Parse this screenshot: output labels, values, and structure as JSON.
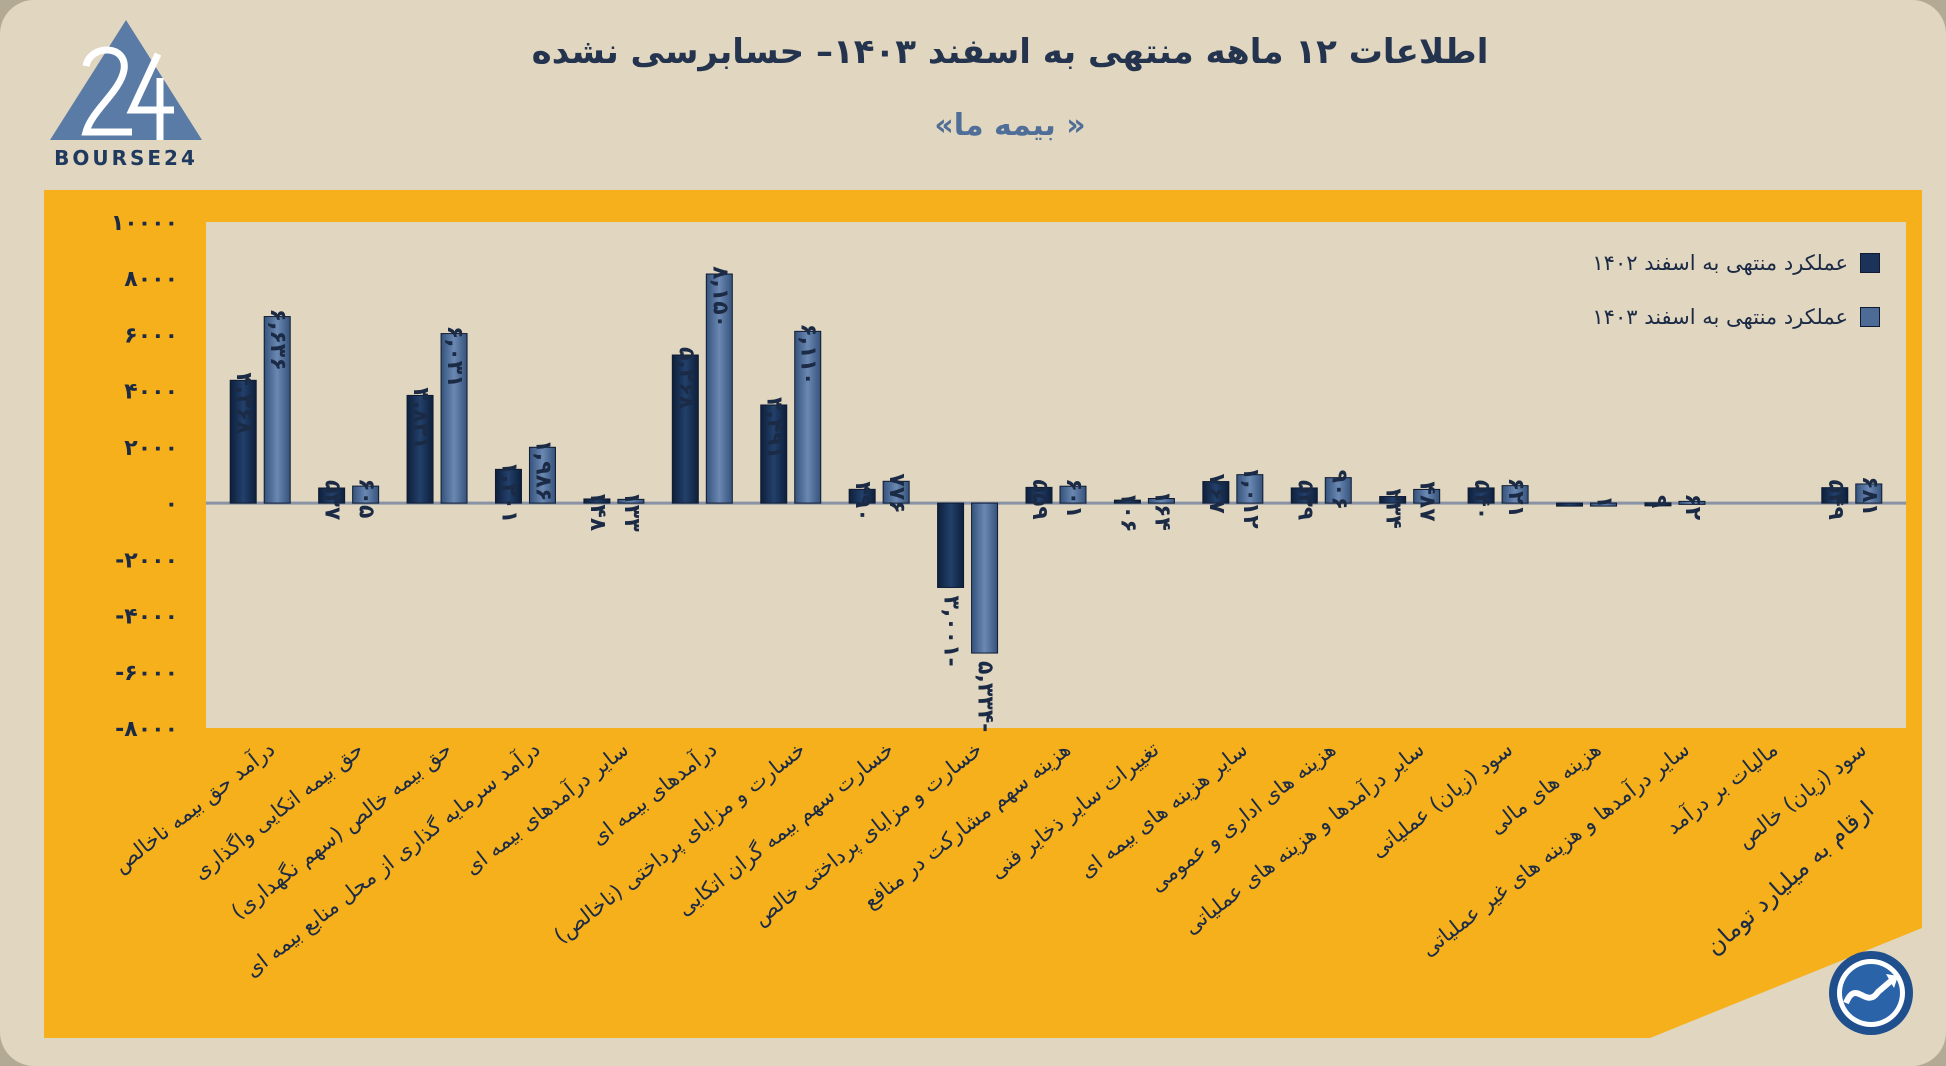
{
  "header": {
    "title": "اطلاعات ۱۲ ماهه منتهی به اسفند ۱۴۰۳– حسابرسی نشده",
    "subtitle": "« بیمه ما»"
  },
  "logo": {
    "text": "BOURSE24",
    "icon": "bourse24-logo-icon"
  },
  "note": "ارقام به میلیارد تومان",
  "badge_icon": "trend-arrow-icon",
  "colors": {
    "panel": "#f5b01c",
    "plot_background": "#e1d6bf",
    "series_1402": "#1b3358",
    "series_1403": "#4d6b95"
  },
  "legend": [
    {
      "label": "عملکرد منتهی به اسفند ۱۴۰۲"
    },
    {
      "label": "عملکرد منتهی به اسفند ۱۴۰۳"
    }
  ],
  "chart_data": {
    "type": "bar",
    "title": "اطلاعات ۱۲ ماهه منتهی به اسفند ۱۴۰۳– حسابرسی نشده",
    "subtitle": "« بیمه ما»",
    "xlabel": "",
    "ylabel": "",
    "ylim": [
      -8000,
      10000
    ],
    "yticks": [
      10000,
      8000,
      6000,
      4000,
      2000,
      0,
      -2000,
      -4000,
      -6000,
      -8000
    ],
    "ytick_labels": [
      "۱۰۰۰۰",
      "۸۰۰۰",
      "۶۰۰۰",
      "۴۰۰۰",
      "۲۰۰۰",
      "۰",
      "-۲۰۰۰",
      "-۴۰۰۰",
      "-۶۰۰۰",
      "-۸۰۰۰"
    ],
    "grid": false,
    "legend_position": "top-right",
    "categories": [
      "درآمد حق بیمه ناخالص",
      "حق بیمه اتکایی واگذاری",
      "حق بیمه خالص (سهم نگهداری)",
      "درآمد سرمایه گذاری از محل منابع بیمه ای",
      "سایر درآمدهای بیمه ای",
      "درآمدهای بیمه ای",
      "خسارت و مزایای پرداختی (ناخالص)",
      "خسارت سهم بیمه گران اتکایی",
      "خسارت و مزایای پرداختی خالص",
      "هزینه سهم مشارکت در منافع",
      "تغییرات سایر ذخایر فنی",
      "سایر هزینه های بیمه ای",
      "هزینه های اداری و عمومی",
      "سایر درآمدها و هزینه های عملیاتی",
      "سود (زیان) عملیاتی",
      "هزینه های مالی",
      "سایر درآمدها و هزینه های غیر عملیاتی",
      "مالیات بر درآمد",
      "سود (زیان) خالص"
    ],
    "series": [
      {
        "name": "عملکرد منتهی به اسفند ۱۴۰۲",
        "values": [
          4368,
          537,
          3831,
          1201,
          148,
          5268,
          3491,
          490,
          -3001,
          559,
          106,
          767,
          539,
          234,
          540,
          -30,
          9,
          0,
          549
        ],
        "labels": [
          "۴,۳۶۸",
          "۵۳۷",
          "۳,۸۳۱",
          "۱,۲۰۱",
          "۱۴۸",
          "۵,۲۶۸",
          "۳,۴۹۱",
          "۴۹۰",
          "-۳,۰۰۱",
          "۵۵۹",
          "۱۰۶",
          "۷۶۷",
          "۵۳۹",
          "۲۳۴",
          "۵۴۰",
          "",
          "۹",
          "",
          "۵۴۹"
        ]
      },
      {
        "name": "عملکرد منتهی به اسفند ۱۴۰۳",
        "values": [
          6636,
          605,
          6031,
          1986,
          133,
          8150,
          6110,
          776,
          -5334,
          601,
          164,
          1012,
          906,
          487,
          621,
          1,
          62,
          0,
          681
        ],
        "labels": [
          "۶,۶۳۶",
          "۶۰۵",
          "۶,۰۳۱",
          "۱,۹۸۶",
          "۱۳۳",
          "۸,۱۵۰",
          "۶,۱۱۰",
          "۷۷۶",
          "-۵,۳۳۴",
          "۶۰۱",
          "۱۶۴",
          "۱,۰۱۲",
          "۹۰۶",
          "۴۸۷",
          "۶۲۱",
          "۱",
          "۶۲",
          "",
          "۶۸۱"
        ]
      }
    ]
  }
}
